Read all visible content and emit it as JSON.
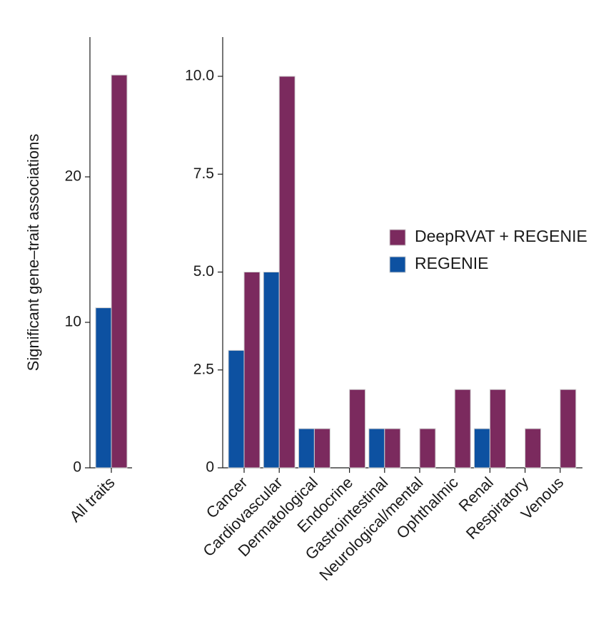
{
  "chart_data": [
    {
      "type": "bar",
      "ylabel": "Significant gene–trait associations",
      "categories": [
        "All traits"
      ],
      "ylim": [
        0,
        29
      ],
      "yticks": [
        0,
        10,
        20
      ],
      "ytick_labels": [
        "0",
        "10",
        "20"
      ],
      "series": [
        {
          "name": "REGENIE",
          "color": "#0d51a1",
          "values": [
            11
          ]
        },
        {
          "name": "DeepRVAT + REGENIE",
          "color": "#7b2a5e",
          "values": [
            27
          ]
        }
      ]
    },
    {
      "type": "bar",
      "ylabel": "",
      "categories": [
        "Cancer",
        "Cardiovascular",
        "Dermatological",
        "Endocrine",
        "Gastrointestinal",
        "Neurological/mental",
        "Ophthalmic",
        "Renal",
        "Respiratory",
        "Venous"
      ],
      "ylim": [
        0,
        11
      ],
      "yticks": [
        0,
        2.5,
        5.0,
        7.5,
        10.0
      ],
      "ytick_labels": [
        "0",
        "2.5",
        "5.0",
        "7.5",
        "10.0"
      ],
      "series": [
        {
          "name": "REGENIE",
          "color": "#0d51a1",
          "values": [
            3,
            5,
            1,
            0,
            1,
            0,
            0,
            1,
            0,
            0
          ]
        },
        {
          "name": "DeepRVAT + REGENIE",
          "color": "#7b2a5e",
          "values": [
            5,
            10,
            1,
            2,
            1,
            1,
            2,
            2,
            1,
            2
          ]
        }
      ]
    }
  ],
  "legend": {
    "position": "center-right",
    "entries": [
      {
        "label": "DeepRVAT + REGENIE",
        "color": "#7b2a5e"
      },
      {
        "label": "REGENIE",
        "color": "#0d51a1"
      }
    ]
  }
}
